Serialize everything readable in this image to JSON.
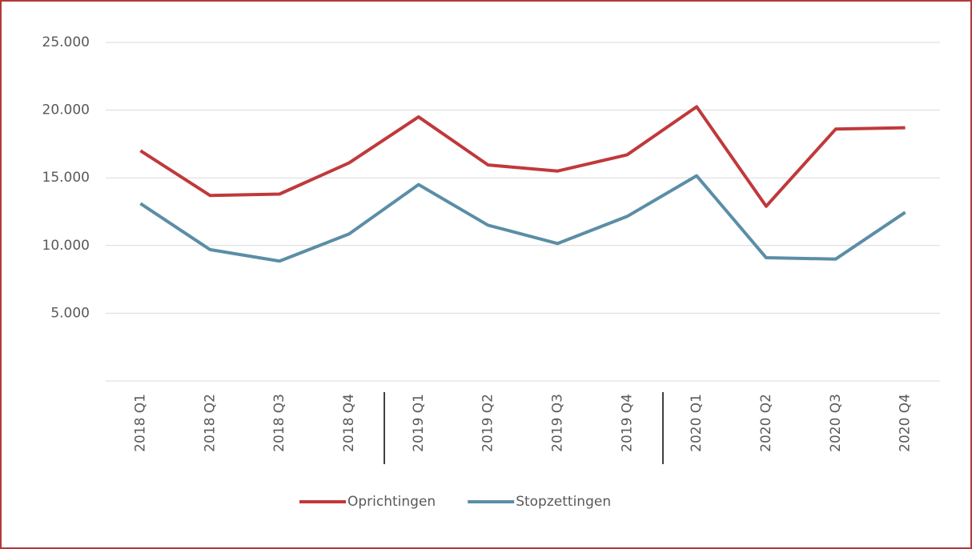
{
  "chart_data": {
    "type": "line",
    "categories": [
      "2018 Q1",
      "2018 Q2",
      "2018 Q3",
      "2018 Q4",
      "2019 Q1",
      "2019 Q2",
      "2019 Q3",
      "2019 Q4",
      "2020 Q1",
      "2020 Q2",
      "2020 Q3",
      "2020 Q4"
    ],
    "series": [
      {
        "name": "Oprichtingen",
        "color": "#c0393b",
        "values": [
          17000,
          13700,
          13800,
          16100,
          19500,
          15950,
          15500,
          16700,
          20250,
          12900,
          18600,
          18700
        ]
      },
      {
        "name": "Stopzettingen",
        "color": "#5b8ea6",
        "values": [
          13100,
          9700,
          8850,
          10850,
          14500,
          11500,
          10150,
          12150,
          15150,
          9100,
          9000,
          12450
        ]
      }
    ],
    "ylim": [
      0,
      25000
    ],
    "yticks": [
      {
        "value": 5000,
        "label": "5.000"
      },
      {
        "value": 10000,
        "label": "10.000"
      },
      {
        "value": 15000,
        "label": "15.000"
      },
      {
        "value": 20000,
        "label": "20.000"
      },
      {
        "value": 25000,
        "label": "25.000"
      }
    ],
    "grid": true,
    "legend": "bottom"
  }
}
